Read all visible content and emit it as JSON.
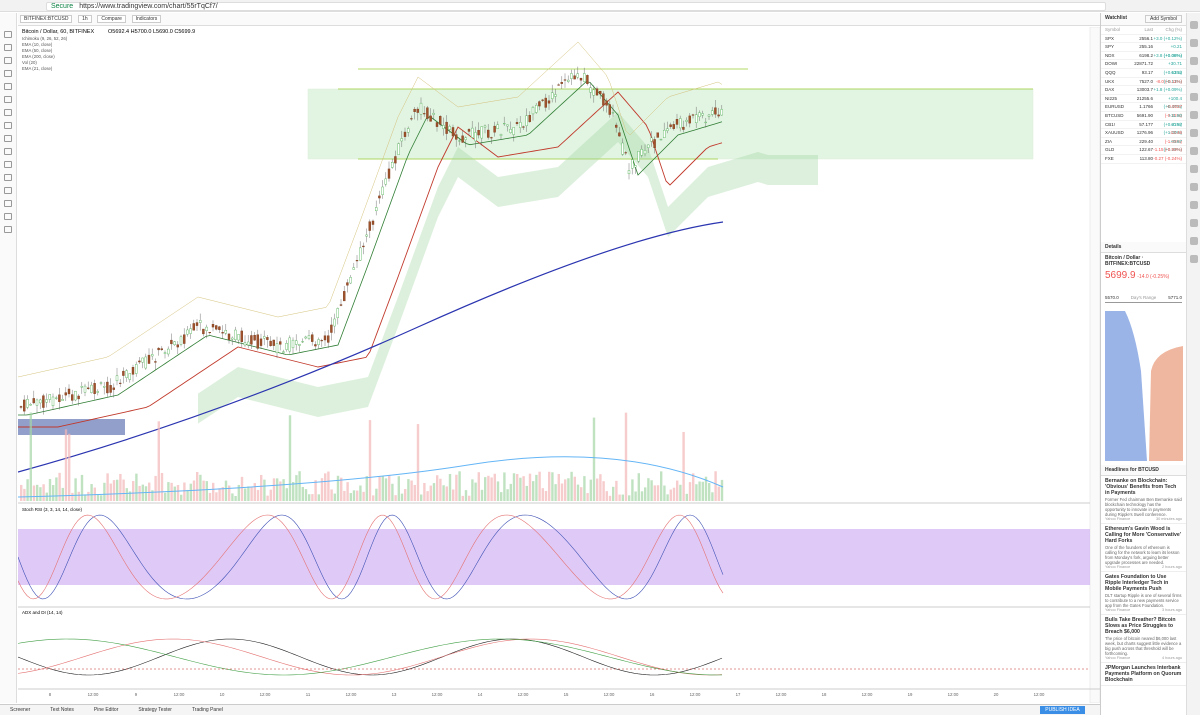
{
  "browser": {
    "secure": "Secure",
    "url": "https://www.tradingview.com/chart/55rTqCf7/"
  },
  "toolbar": {
    "symbol": "BITFINEX:BTCUSD",
    "interval": "1h",
    "compare": "Compare",
    "indicators": "Indicators"
  },
  "chart": {
    "legend": "Bitcoin / Dollar, 60, BITFINEX",
    "ohlc": "O5692.4 H5700.0 L5690.0 C5699.9",
    "indicators": [
      "Ichimoku (9, 26, 52, 26)",
      "EMA (10, close)",
      "EMA (50, close)",
      "EMA (200, close)",
      "Vol (20)",
      "EMA (21, close)"
    ],
    "stoch": "Stoch RSI (3, 3, 14, 14, close)",
    "adx": "ADX and DI (14, 14)",
    "time_labels": [
      "8",
      "12:00",
      "9",
      "12:00",
      "10",
      "12:00",
      "11",
      "12:00",
      "13",
      "12:00",
      "14",
      "12:00",
      "15",
      "12:00",
      "16",
      "12:00",
      "17",
      "12:00",
      "18",
      "12:00",
      "19",
      "12:00",
      "20",
      "12:00"
    ]
  },
  "bottom_tabs": [
    "Screener",
    "Text Notes",
    "Pine Editor",
    "Strategy Tester",
    "Trading Panel"
  ],
  "publish": "PUBLISH IDEA",
  "watchlist": {
    "title": "Watchlist",
    "add": "Add Symbol",
    "columns": [
      "Symbol",
      "Last",
      "Chg (%)"
    ],
    "rows": [
      [
        "SPX",
        "2556.1",
        "+3.0 (+0.12%)"
      ],
      [
        "SPY",
        "255.16",
        "+0.21 (+0.08%)"
      ],
      [
        "NDX",
        "6198.2",
        "+3.8 (+0.06%)"
      ],
      [
        "DOWI",
        "22871.72",
        "+30.71 (+0.13%)"
      ],
      [
        "QQQ",
        "93.17",
        "+0.12 (+0.13%)"
      ],
      [
        "UKX",
        "7527.0",
        "-8.0 (-0.11%)"
      ],
      [
        "DAX",
        "13003.7",
        "+1.8 (+0.09%)"
      ],
      [
        "NI225",
        "21255.6",
        "+100.4 (+0.47%)"
      ],
      [
        "EURUSD",
        "1.1766",
        "-0.0037 (-0.31%)"
      ],
      [
        "BTCUSD",
        "5691.90",
        "+11.80 (+0.21%)"
      ],
      [
        "CB1!",
        "57.177",
        "+0.57 (+1.00%)"
      ],
      [
        "XAUUSD",
        "1276.96",
        "-13.46 (-1.05%)"
      ],
      [
        "ZIA",
        "229.40",
        "+0.67 (+0.29%)"
      ],
      [
        "GLD",
        "122.67",
        "-1.15 (-0.93%)"
      ],
      [
        "FXE",
        "113.80",
        "-0.27 (-0.24%)"
      ]
    ]
  },
  "details": {
    "title": "Details",
    "name": "Bitcoin / Dollar · BITFINEX:BTCUSD",
    "price": "5699.9",
    "change": "-14.0 (-0.25%)",
    "low": "5570.0",
    "range": "Day's Range",
    "high": "5771.0"
  },
  "headlines": {
    "title": "Headlines for BTCUSD",
    "items": [
      {
        "title": "Bernanke on Blockchain: 'Obvious' Benefits from Tech in Payments",
        "text": "Former Fed chairman Ben Bernanke said blockchain technology has the opportunity to innovate in payments during Ripple's Swell conference.",
        "source": "Yahoo Finance",
        "time": "30 minutes ago"
      },
      {
        "title": "Ethereum's Gavin Wood is Calling for More 'Conservative' Hard Forks",
        "text": "One of the founders of ethereum is calling for the network to learn its lesson from Monday's fork, arguing better upgrade processes are needed.",
        "source": "Yahoo Finance",
        "time": "2 hours ago"
      },
      {
        "title": "Gates Foundation to Use Ripple Interledger Tech in Mobile Payments Push",
        "text": "DLT startup Ripple is one of several firms to contribute to a new payments service app from the Gates Foundation.",
        "source": "Yahoo Finance",
        "time": "3 hours ago"
      },
      {
        "title": "Bulls Take Breather? Bitcoin Slows as Price Struggles to Breach $6,000",
        "text": "The price of bitcoin neared $6,000 last week, but charts suggest little evidence a big push across that threshold will be forthcoming.",
        "source": "Yahoo Finance",
        "time": "4 hours ago"
      },
      {
        "title": "JPMorgan Launches Interbank Payments Platform on Quorum Blockchain"
      }
    ]
  }
}
